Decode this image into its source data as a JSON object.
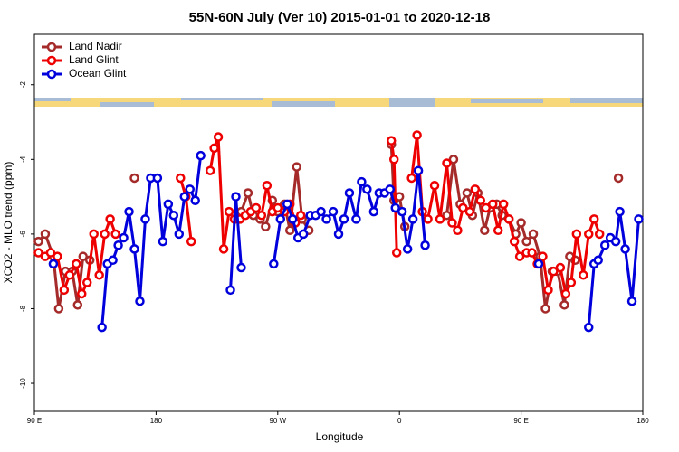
{
  "chart_data": {
    "type": "line",
    "title": "55N-60N July (Ver 10)   2015-01-01 to 2020-12-18",
    "xlabel": "Longitude",
    "ylabel": "XCO2 - MLO trend (ppm)",
    "xlim": [
      90,
      540
    ],
    "xticks": [
      {
        "value": 90,
        "label": "90 E"
      },
      {
        "value": 180,
        "label": "180"
      },
      {
        "value": 270,
        "label": "90 W"
      },
      {
        "value": 360,
        "label": "0"
      },
      {
        "value": 450,
        "label": "90 E"
      },
      {
        "value": 540,
        "label": "180"
      }
    ],
    "ylim": [
      -10.75,
      -0.65
    ],
    "yticks": [
      -10,
      -8,
      -6,
      -4,
      -2
    ],
    "legend": "upper left",
    "series": [
      {
        "name": "Land Nadir",
        "color": "#a52a2a",
        "x": [
          93,
          98,
          104,
          108,
          113,
          118,
          122,
          126,
          131,
          null,
          164,
          null,
          243,
          248,
          252,
          257,
          261,
          266,
          270,
          275,
          279,
          284,
          288,
          293,
          null,
          354,
          356,
          360,
          364,
          null,
          395,
          400,
          405,
          410,
          414,
          418,
          423,
          427,
          432,
          436,
          441,
          446,
          450,
          454,
          459,
          464,
          468,
          473,
          477,
          482,
          486,
          490,
          null,
          522
        ],
        "values": [
          -6.2,
          -6.0,
          -6.6,
          -8.0,
          -7.0,
          -7.0,
          -7.9,
          -6.6,
          -6.7,
          null,
          -4.5,
          null,
          -5.4,
          -4.9,
          -5.5,
          -5.6,
          -5.8,
          -5.1,
          -5.4,
          -5.2,
          -5.9,
          -4.2,
          -5.6,
          -5.9,
          null,
          -3.6,
          -5.1,
          -5.0,
          -5.8,
          null,
          -5.5,
          -4.0,
          -5.2,
          -4.9,
          -5.5,
          -4.9,
          -5.9,
          -5.3,
          -5.2,
          -5.5,
          -5.6,
          -6.0,
          -5.7,
          -6.2,
          -6.0,
          -6.6,
          -8.0,
          -7.0,
          -7.0,
          -7.9,
          -6.6,
          -6.7,
          null,
          -4.5
        ]
      },
      {
        "name": "Land Glint",
        "color": "#ee0000",
        "x": [
          93,
          98,
          102,
          107,
          112,
          116,
          121,
          125,
          129,
          134,
          138,
          142,
          146,
          150,
          null,
          198,
          202,
          206,
          null,
          220,
          223,
          226,
          230,
          234,
          238,
          242,
          246,
          250,
          254,
          258,
          262,
          266,
          270,
          275,
          279,
          283,
          287,
          null,
          354,
          356,
          358,
          null,
          369,
          373,
          377,
          381,
          386,
          390,
          395,
          399,
          403,
          407,
          412,
          416,
          420,
          424,
          429,
          433,
          437,
          441,
          445,
          449,
          454,
          458,
          462,
          466,
          470,
          474,
          479,
          483,
          487,
          491,
          496,
          500,
          504,
          508
        ],
        "values": [
          -6.5,
          -6.6,
          -6.5,
          -6.6,
          -7.5,
          -7.1,
          -6.8,
          -7.6,
          -7.3,
          -6.0,
          -7.1,
          -6.0,
          -5.6,
          -6.0,
          null,
          -4.5,
          -5.0,
          -6.2,
          null,
          -4.3,
          -3.7,
          -3.4,
          -6.4,
          -5.4,
          -5.6,
          -5.6,
          -5.5,
          -5.4,
          -5.3,
          -5.5,
          -4.7,
          -5.4,
          -5.3,
          -5.4,
          -5.2,
          -5.7,
          -5.5,
          null,
          -3.5,
          -4.0,
          -6.5,
          null,
          -4.5,
          -3.35,
          -5.4,
          -5.6,
          -4.7,
          -5.6,
          -4.1,
          -5.7,
          -5.9,
          -5.3,
          -5.4,
          -4.8,
          -5.1,
          -5.3,
          -5.2,
          -5.9,
          -5.2,
          -5.6,
          -6.2,
          -6.6,
          -6.5,
          -6.5,
          -6.8,
          -6.6,
          -7.5,
          -7.0,
          -6.9,
          -7.6,
          -7.3,
          -6.0,
          -7.1,
          -6.0,
          -5.6,
          -6.0
        ]
      },
      {
        "name": "Ocean Glint",
        "color": "#0000dd",
        "x": [
          104,
          null,
          140,
          144,
          148,
          152,
          156,
          160,
          164,
          168,
          172,
          176,
          181,
          185,
          189,
          193,
          197,
          201,
          205,
          209,
          213,
          null,
          235,
          239,
          243,
          null,
          267,
          272,
          277,
          281,
          285,
          289,
          294,
          298,
          302,
          306,
          311,
          315,
          319,
          323,
          328,
          332,
          336,
          341,
          345,
          349,
          353,
          357,
          362,
          366,
          370,
          374,
          379,
          null,
          463,
          null,
          500,
          504,
          507,
          512,
          516,
          520,
          523,
          527,
          532,
          537
        ],
        "values": [
          -6.8,
          null,
          -8.5,
          -6.8,
          -6.7,
          -6.3,
          -6.1,
          -5.4,
          -6.4,
          -7.8,
          -5.6,
          -4.5,
          -4.5,
          -6.2,
          -5.2,
          -5.5,
          -6.0,
          -5.0,
          -4.8,
          -5.1,
          -3.9,
          null,
          -7.5,
          -5.0,
          -6.9,
          null,
          -6.8,
          -5.6,
          -5.2,
          -5.6,
          -6.1,
          -6.0,
          -5.5,
          -5.5,
          -5.4,
          -5.6,
          -5.4,
          -6.0,
          -5.6,
          -4.9,
          -5.6,
          -4.6,
          -4.8,
          -5.4,
          -4.9,
          -4.9,
          -4.8,
          -5.3,
          -5.4,
          -6.4,
          -5.6,
          -4.3,
          -6.3,
          null,
          -6.8,
          null,
          -8.5,
          -6.8,
          -6.7,
          -6.3,
          -6.1,
          -6.2,
          -5.4,
          -6.4,
          -7.8,
          -5.6
        ]
      }
    ]
  }
}
